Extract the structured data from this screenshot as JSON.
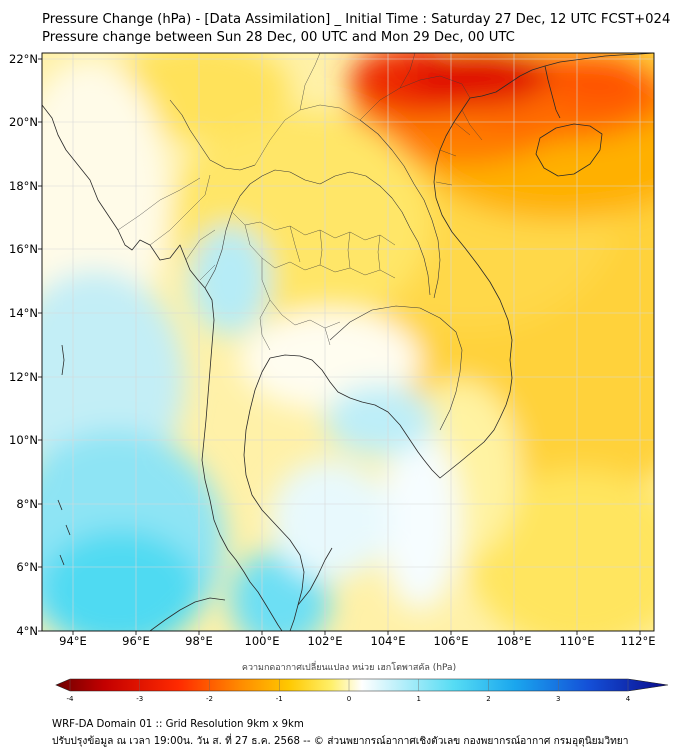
{
  "header": {
    "title": "Pressure Change (hPa) - [Data Assimilation] _ Initial Time : Saturday 27 Dec, 12 UTC FCST+024",
    "subtitle": "Pressure change between Sun 28 Dec, 00 UTC and Mon 29 Dec, 00 UTC"
  },
  "map": {
    "lon_range": [
      93,
      112.5
    ],
    "lat_range": [
      4,
      22.2
    ],
    "lon_ticks": [
      "94°E",
      "96°E",
      "98°E",
      "100°E",
      "102°E",
      "104°E",
      "106°E",
      "108°E",
      "110°E",
      "112°E"
    ],
    "lat_ticks": [
      "22°N",
      "20°N",
      "18°N",
      "16°N",
      "14°N",
      "12°N",
      "10°N",
      "8°N",
      "6°N",
      "4°N"
    ],
    "colors": {
      "strong_fall": "#e00000",
      "fall": "#ff9a00",
      "slight_fall": "#ffe44a",
      "neutral": "#ffffff",
      "slight_rise": "#b8ecf6",
      "rise": "#30d6f0",
      "strong_rise": "#0a1cb4"
    }
  },
  "colorbar": {
    "label": "ความกดอากาศเปลี่ยนแปลง หน่วย เฮกโตพาสคัล (hPa)",
    "range": [
      -4,
      4
    ],
    "tick_labels": [
      "-4",
      "-3",
      "-2",
      "-1",
      "0",
      "1",
      "2",
      "3",
      "4"
    ]
  },
  "footer": {
    "line1": "WRF-DA Domain 01 :: Grid Resolution 9km x 9km",
    "line2": "ปรับปรุงข้อมูล ณ เวลา 19:00น. วัน ส. ที่ 27 ธ.ค. 2568 -- © ส่วนพยากรณ์อากาศเชิงตัวเลข กองพยากรณ์อากาศ กรมอุตุนิยมวิทยา"
  }
}
